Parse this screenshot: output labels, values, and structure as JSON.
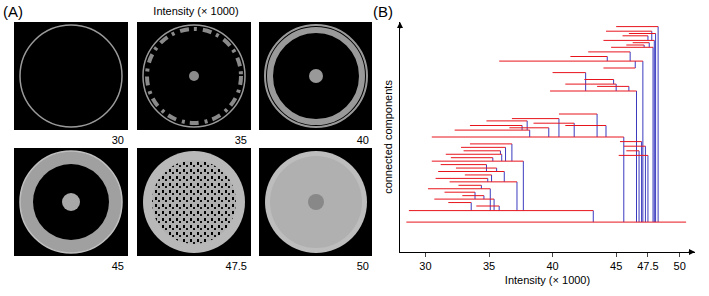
{
  "panel_a": {
    "label": "(A)",
    "title": "Intensity (× 1000)",
    "thresholds": [
      30,
      35,
      40,
      45,
      47.5,
      50
    ]
  },
  "chart_data": {
    "type": "line",
    "annotations": [
      "(B)"
    ],
    "xlabel": "Intensity (× 1000)",
    "ylabel": "connected components",
    "xlim": [
      28,
      51.2
    ],
    "ylim": [
      0,
      100
    ],
    "xticks": [
      30,
      35,
      40,
      45,
      47.5,
      50
    ],
    "tick_labels": "x",
    "grid": false,
    "series": [
      {
        "type": "merge",
        "color": "#3b3bc0",
        "values": [
          [
            43.2,
            13,
            18
          ],
          [
            36.8,
            39.5,
            47
          ],
          [
            36.3,
            39.5,
            45.5
          ],
          [
            35.9,
            42.5,
            44
          ],
          [
            36.0,
            39.5,
            42.5
          ],
          [
            35.3,
            39.5,
            41
          ],
          [
            37.7,
            18,
            39.5
          ],
          [
            34.8,
            35,
            38
          ],
          [
            35.6,
            35,
            36.5
          ],
          [
            36.2,
            30.5,
            35
          ],
          [
            35.2,
            30.5,
            33.5
          ],
          [
            34.9,
            30.5,
            32
          ],
          [
            37.2,
            18,
            30.5
          ],
          [
            34.4,
            27.5,
            29
          ],
          [
            35.1,
            18,
            27.5
          ],
          [
            33.9,
            23,
            26
          ],
          [
            34.6,
            23,
            24.5
          ],
          [
            35.4,
            18,
            23
          ],
          [
            33.6,
            18,
            21.5
          ],
          [
            35.8,
            18,
            20
          ],
          [
            45.6,
            13,
            50
          ],
          [
            47.0,
            13,
            48
          ],
          [
            47.3,
            13,
            46
          ],
          [
            46.8,
            13,
            44
          ],
          [
            47.5,
            13,
            42
          ],
          [
            38.2,
            50,
            53
          ],
          [
            37.6,
            53,
            55
          ],
          [
            38.0,
            53,
            57
          ],
          [
            39.7,
            50,
            54
          ],
          [
            40.5,
            50,
            58
          ],
          [
            41.7,
            50,
            56
          ],
          [
            43.5,
            50,
            60
          ],
          [
            44.2,
            50,
            55
          ],
          [
            46.6,
            13,
            70
          ],
          [
            45.0,
            70,
            73
          ],
          [
            44.8,
            73,
            75
          ],
          [
            46.0,
            70,
            72
          ],
          [
            47.1,
            13,
            83
          ],
          [
            44.3,
            83,
            85
          ],
          [
            46.1,
            83,
            87
          ],
          [
            46.5,
            80,
            83
          ],
          [
            42.6,
            70,
            78
          ],
          [
            48.3,
            13,
            98
          ],
          [
            48.0,
            13,
            92
          ],
          [
            47.8,
            92,
            96
          ],
          [
            47.5,
            92,
            94
          ],
          [
            47.2,
            89,
            90
          ],
          [
            47.9,
            13,
            89
          ],
          [
            48.1,
            13,
            95
          ],
          [
            47.6,
            89,
            91
          ]
        ]
      },
      {
        "type": "lifetime",
        "color": "#e8141c",
        "values": [
          [
            28.5,
            50.5,
            13
          ],
          [
            28.7,
            43.2,
            18
          ],
          [
            33.5,
            36.8,
            47
          ],
          [
            32.8,
            36.3,
            45.5
          ],
          [
            33.0,
            35.9,
            44
          ],
          [
            31.6,
            36.0,
            42.5
          ],
          [
            32.0,
            35.3,
            41
          ],
          [
            30.5,
            37.7,
            39.5
          ],
          [
            31.2,
            34.8,
            38
          ],
          [
            32.4,
            35.6,
            36.5
          ],
          [
            31.0,
            36.2,
            35
          ],
          [
            33.1,
            35.2,
            33.5
          ],
          [
            30.8,
            34.9,
            32
          ],
          [
            31.9,
            37.2,
            30.5
          ],
          [
            32.6,
            34.4,
            29
          ],
          [
            30.2,
            35.1,
            27.5
          ],
          [
            31.5,
            33.9,
            26
          ],
          [
            32.9,
            34.6,
            24.5
          ],
          [
            30.7,
            35.4,
            23
          ],
          [
            31.8,
            33.6,
            21.5
          ],
          [
            34.0,
            35.8,
            20
          ],
          [
            30.5,
            45.6,
            50
          ],
          [
            45.3,
            47.0,
            48
          ],
          [
            45.6,
            47.3,
            46
          ],
          [
            45.8,
            46.8,
            44
          ],
          [
            45.2,
            47.5,
            42
          ],
          [
            32.3,
            38.2,
            53
          ],
          [
            33.5,
            37.6,
            55
          ],
          [
            34.8,
            38.0,
            57
          ],
          [
            36.6,
            39.7,
            54
          ],
          [
            36.8,
            40.5,
            58
          ],
          [
            38.5,
            41.7,
            56
          ],
          [
            40.5,
            43.5,
            60
          ],
          [
            41.0,
            44.2,
            55
          ],
          [
            39.8,
            46.6,
            70
          ],
          [
            41.0,
            45.0,
            73
          ],
          [
            42.5,
            44.8,
            75
          ],
          [
            43.5,
            46.0,
            72
          ],
          [
            35.8,
            47.1,
            83
          ],
          [
            41.4,
            44.3,
            85
          ],
          [
            42.8,
            46.1,
            87
          ],
          [
            44.0,
            46.5,
            80
          ],
          [
            40.0,
            42.6,
            78
          ],
          [
            45.0,
            48.3,
            98
          ],
          [
            44.2,
            47.8,
            96
          ],
          [
            45.5,
            47.5,
            94
          ],
          [
            44.0,
            48.0,
            92
          ],
          [
            45.8,
            47.2,
            90
          ],
          [
            44.6,
            47.9,
            89
          ],
          [
            46.0,
            48.1,
            95
          ],
          [
            46.3,
            47.6,
            91
          ]
        ]
      }
    ]
  }
}
